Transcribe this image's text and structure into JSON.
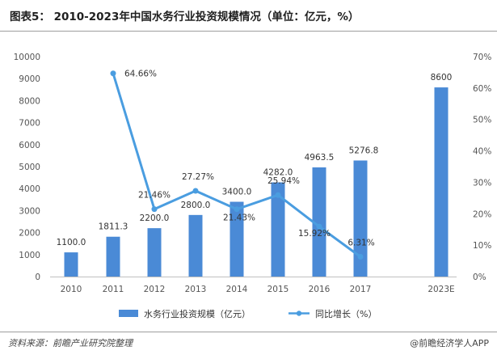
{
  "title": "图表5： 2010-2023年中国水务行业投资规模情况（单位：亿元，%）",
  "source": "资料来源：前瞻产业研究院整理",
  "brand": "@前瞻经济学人APP",
  "colors": {
    "bar": "#4a8ad6",
    "line": "#4a9de0",
    "axis_text": "#555555"
  },
  "chart_data": {
    "type": "bar",
    "categories": [
      "2010",
      "2011",
      "2012",
      "2013",
      "2014",
      "2015",
      "2016",
      "2017",
      "2023E"
    ],
    "series": [
      {
        "name": "水务行业投资规模（亿元）",
        "type": "bar",
        "axis": "left",
        "values": [
          1100.0,
          1811.3,
          2200.0,
          2800.0,
          3400.0,
          4282.0,
          4963.5,
          5276.8,
          8600
        ],
        "labels": [
          "1100.0",
          "1811.3",
          "2200.0",
          "2800.0",
          "3400.0",
          "4282.0",
          "4963.5",
          "5276.8",
          "8600"
        ]
      },
      {
        "name": "同比增长（%）",
        "type": "line",
        "axis": "right",
        "values": [
          null,
          64.66,
          21.46,
          27.27,
          21.43,
          25.94,
          15.92,
          6.31,
          null
        ],
        "labels": [
          "",
          "64.66%",
          "21.46%",
          "27.27%",
          "21.43%",
          "25.94%",
          "15.92%",
          "6.31%",
          ""
        ]
      }
    ],
    "left_axis": {
      "ylim": [
        0,
        10000
      ],
      "ticks": [
        "0",
        "1000",
        "2000",
        "3000",
        "4000",
        "5000",
        "6000",
        "7000",
        "8000",
        "9000",
        "10000"
      ]
    },
    "right_axis": {
      "ylim": [
        0,
        70
      ],
      "ticks": [
        "0%",
        "10%",
        "20%",
        "30%",
        "40%",
        "50%",
        "60%",
        "70%"
      ]
    },
    "grid": false,
    "legend_position": "bottom"
  }
}
